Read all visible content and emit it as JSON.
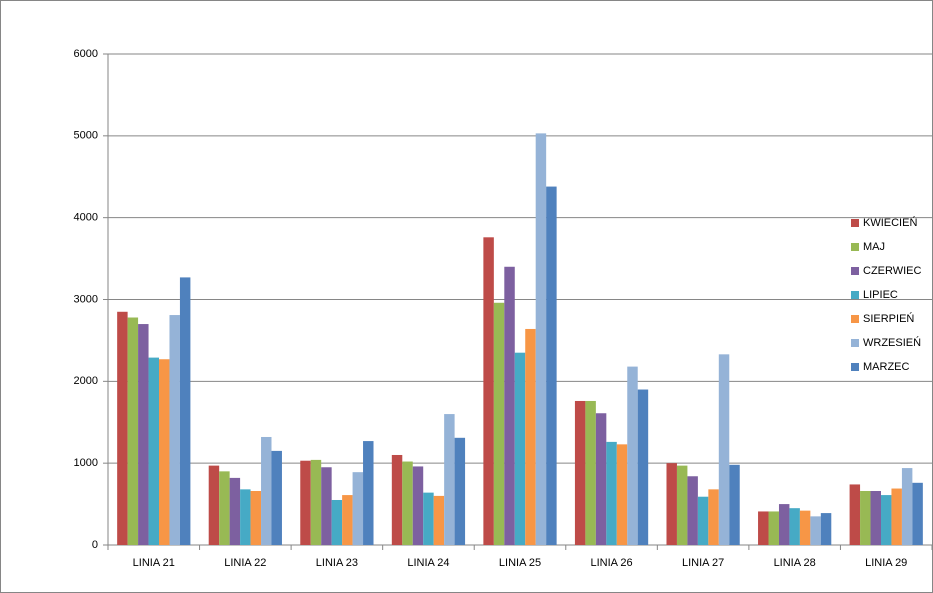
{
  "chart_data": {
    "type": "bar",
    "categories": [
      "LINIA 21",
      "LINIA 22",
      "LINIA 23",
      "LINIA 24",
      "LINIA 25",
      "LINIA 26",
      "LINIA 27",
      "LINIA 28",
      "LINIA 29"
    ],
    "series": [
      {
        "name": "KWIECIEŃ",
        "color": "#be4b48",
        "values": [
          2850,
          970,
          1030,
          1100,
          3760,
          1760,
          1000,
          410,
          740
        ]
      },
      {
        "name": "MAJ",
        "color": "#98b954",
        "values": [
          2780,
          900,
          1040,
          1020,
          2960,
          1760,
          970,
          410,
          660
        ]
      },
      {
        "name": "CZERWIEC",
        "color": "#7d60a0",
        "values": [
          2700,
          820,
          950,
          960,
          3400,
          1610,
          840,
          500,
          660
        ]
      },
      {
        "name": "LIPIEC",
        "color": "#46aac5",
        "values": [
          2290,
          680,
          550,
          640,
          2350,
          1260,
          590,
          450,
          610
        ]
      },
      {
        "name": "SIERPIEŃ",
        "color": "#f79646",
        "values": [
          2270,
          660,
          610,
          600,
          2640,
          1230,
          680,
          420,
          690
        ]
      },
      {
        "name": "WRZESIEŃ",
        "color": "#95b3d7",
        "values": [
          2810,
          1320,
          890,
          1600,
          5030,
          2180,
          2330,
          350,
          940
        ]
      },
      {
        "name": "MARZEC",
        "color": "#4f81bd",
        "values": [
          3270,
          1150,
          1270,
          1310,
          4380,
          1900,
          980,
          390,
          760
        ]
      }
    ],
    "ylim": [
      0,
      6000
    ],
    "yticks": [
      0,
      1000,
      2000,
      3000,
      4000,
      5000,
      6000
    ],
    "grid": true,
    "legend": "right"
  }
}
